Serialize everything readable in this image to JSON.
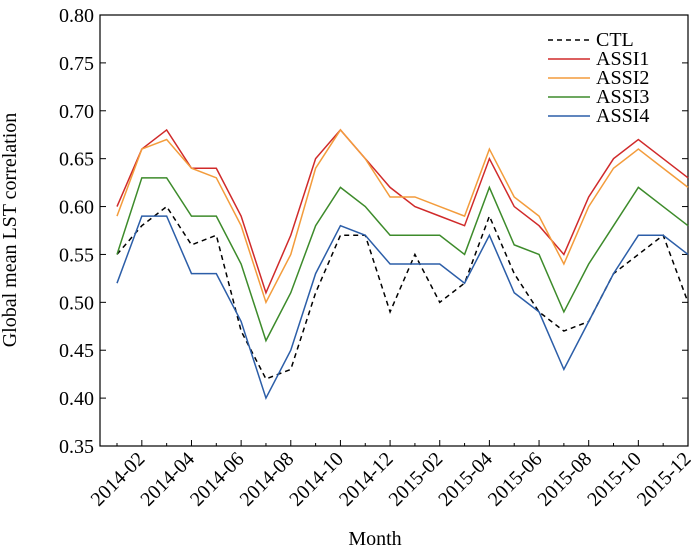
{
  "chart_data": {
    "type": "line",
    "xlabel": "Month",
    "ylabel": "Global mean LST correlation",
    "categories": [
      null,
      "2014-02",
      null,
      "2014-04",
      null,
      "2014-06",
      null,
      "2014-08",
      null,
      "2014-10",
      null,
      "2014-12",
      null,
      "2015-02",
      null,
      "2015-04",
      null,
      "2015-06",
      null,
      "2015-08",
      null,
      "2015-10",
      null,
      "2015-12"
    ],
    "series": [
      {
        "name": "CTL",
        "color": "#000000",
        "dashed": true,
        "values": [
          0.55,
          0.58,
          0.6,
          0.56,
          0.57,
          0.47,
          0.42,
          0.43,
          0.51,
          0.57,
          0.57,
          0.49,
          0.55,
          0.5,
          0.52,
          0.59,
          0.53,
          0.49,
          0.47,
          0.48,
          0.53,
          0.55,
          0.57,
          0.5
        ]
      },
      {
        "name": "ASSI1",
        "color": "#d02a2a",
        "values": [
          0.6,
          0.66,
          0.68,
          0.64,
          0.64,
          0.59,
          0.51,
          0.57,
          0.65,
          0.68,
          0.65,
          0.62,
          0.6,
          0.59,
          0.58,
          0.65,
          0.6,
          0.58,
          0.55,
          0.61,
          0.65,
          0.67,
          0.65,
          0.63
        ]
      },
      {
        "name": "ASSI2",
        "color": "#f39c3c",
        "values": [
          0.59,
          0.66,
          0.67,
          0.64,
          0.63,
          0.58,
          0.5,
          0.55,
          0.64,
          0.68,
          0.65,
          0.61,
          0.61,
          0.6,
          0.59,
          0.66,
          0.61,
          0.59,
          0.54,
          0.6,
          0.64,
          0.66,
          0.64,
          0.62
        ]
      },
      {
        "name": "ASSI3",
        "color": "#3d8b2b",
        "values": [
          0.55,
          0.63,
          0.63,
          0.59,
          0.59,
          0.54,
          0.46,
          0.51,
          0.58,
          0.62,
          0.6,
          0.57,
          0.57,
          0.57,
          0.55,
          0.62,
          0.56,
          0.55,
          0.49,
          0.54,
          0.58,
          0.62,
          0.6,
          0.58
        ]
      },
      {
        "name": "ASSI4",
        "color": "#2c5ea8",
        "values": [
          0.52,
          0.59,
          0.59,
          0.53,
          0.53,
          0.48,
          0.4,
          0.45,
          0.53,
          0.58,
          0.57,
          0.54,
          0.54,
          0.54,
          0.52,
          0.57,
          0.51,
          0.49,
          0.43,
          0.48,
          0.53,
          0.57,
          0.57,
          0.55
        ]
      }
    ],
    "ylim": [
      0.35,
      0.8
    ],
    "yticks": [
      0.35,
      {
        "value": 0.4,
        "label": "0.40"
      },
      0.45,
      {
        "value": 0.5,
        "label": "0.50"
      },
      0.55,
      {
        "value": 0.6,
        "label": "0.60"
      },
      0.65,
      {
        "value": 0.7,
        "label": "0.70"
      },
      0.75,
      {
        "value": 0.8,
        "label": "0.80"
      }
    ],
    "legend": "upper right"
  }
}
